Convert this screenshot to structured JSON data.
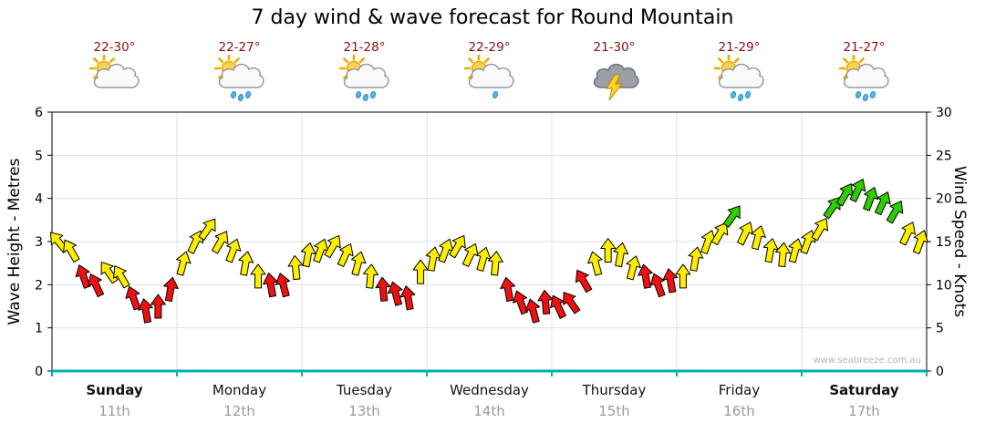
{
  "title": "7 day wind & wave forecast for Round Mountain",
  "watermark": "www.seabreeze.com.au",
  "axes": {
    "left_title": "Wave Height - Metres",
    "right_title": "Wind Speed - Knots",
    "left_ticks": [
      0,
      1,
      2,
      3,
      4,
      5,
      6
    ],
    "right_ticks": [
      0,
      5,
      10,
      15,
      20,
      25,
      30
    ]
  },
  "days": [
    {
      "name": "Sunday",
      "date": "11th",
      "temp": "22-30°",
      "icon": "sun-cloud",
      "drops": 0,
      "weekend": true
    },
    {
      "name": "Monday",
      "date": "12th",
      "temp": "22-27°",
      "icon": "sun-cloud-rain",
      "drops": 3,
      "weekend": false
    },
    {
      "name": "Tuesday",
      "date": "13th",
      "temp": "21-28°",
      "icon": "sun-cloud-rain",
      "drops": 3,
      "weekend": false
    },
    {
      "name": "Wednesday",
      "date": "14th",
      "temp": "22-29°",
      "icon": "sun-cloud-rain",
      "drops": 1,
      "weekend": false
    },
    {
      "name": "Thursday",
      "date": "15th",
      "temp": "21-30°",
      "icon": "storm",
      "drops": 0,
      "weekend": false
    },
    {
      "name": "Friday",
      "date": "16th",
      "temp": "21-29°",
      "icon": "sun-cloud-rain",
      "drops": 3,
      "weekend": false
    },
    {
      "name": "Saturday",
      "date": "17th",
      "temp": "21-27°",
      "icon": "sun-cloud-rain",
      "drops": 3,
      "weekend": true
    }
  ],
  "colors": {
    "wind_light": "#ee1111",
    "wind_moderate": "#ffee00",
    "wind_fresh": "#2ecc00",
    "arrow_outline": "#000000",
    "axis_bottom": "#00b0b0",
    "grid": "#e0e0e0",
    "frame": "#000000",
    "temp_text": "#8b0f0f",
    "date_text": "#9a9a9a"
  },
  "chart_data": {
    "type": "scatter",
    "title": "7 day wind & wave forecast for Round Mountain",
    "x_unit": "days (0-7 across Sunday 11th to Saturday 17th)",
    "y_right_label": "Wind Speed - Knots",
    "y_right_range": [
      0,
      30
    ],
    "y_left_label": "Wave Height - Metres",
    "y_left_range": [
      0,
      6
    ],
    "legend": "arrow color = wind strength: red light, yellow moderate, green fresh; arrow rotation = wind direction",
    "point_format": [
      "day_fraction",
      "knots",
      "direction_deg",
      "color_code"
    ],
    "points": [
      [
        0.05,
        15,
        -40,
        "Y"
      ],
      [
        0.15,
        14,
        -30,
        "Y"
      ],
      [
        0.25,
        11,
        -20,
        "R"
      ],
      [
        0.35,
        10,
        -25,
        "R"
      ],
      [
        0.45,
        11.5,
        -35,
        "Y"
      ],
      [
        0.55,
        11,
        -30,
        "Y"
      ],
      [
        0.65,
        8.5,
        -20,
        "R"
      ],
      [
        0.75,
        7,
        -10,
        "R"
      ],
      [
        0.85,
        7.5,
        0,
        "R"
      ],
      [
        0.95,
        9.5,
        10,
        "R"
      ],
      [
        1.05,
        12.5,
        15,
        "Y"
      ],
      [
        1.15,
        15,
        25,
        "Y"
      ],
      [
        1.25,
        16.5,
        35,
        "Y"
      ],
      [
        1.35,
        15,
        30,
        "Y"
      ],
      [
        1.45,
        14,
        20,
        "Y"
      ],
      [
        1.55,
        12.5,
        10,
        "Y"
      ],
      [
        1.65,
        11,
        0,
        "Y"
      ],
      [
        1.75,
        10,
        -10,
        "R"
      ],
      [
        1.85,
        10,
        -15,
        "R"
      ],
      [
        1.95,
        12,
        -5,
        "Y"
      ],
      [
        2.05,
        13.5,
        10,
        "Y"
      ],
      [
        2.15,
        14,
        20,
        "Y"
      ],
      [
        2.25,
        14.5,
        30,
        "Y"
      ],
      [
        2.35,
        13.5,
        25,
        "Y"
      ],
      [
        2.45,
        12.5,
        15,
        "Y"
      ],
      [
        2.55,
        11,
        5,
        "Y"
      ],
      [
        2.65,
        9.5,
        -5,
        "R"
      ],
      [
        2.75,
        9,
        -15,
        "R"
      ],
      [
        2.85,
        8.5,
        -10,
        "R"
      ],
      [
        2.95,
        11.5,
        0,
        "Y"
      ],
      [
        3.05,
        13,
        10,
        "Y"
      ],
      [
        3.15,
        14,
        20,
        "Y"
      ],
      [
        3.25,
        14.5,
        30,
        "Y"
      ],
      [
        3.35,
        13.5,
        25,
        "Y"
      ],
      [
        3.45,
        13,
        15,
        "Y"
      ],
      [
        3.55,
        12.5,
        5,
        "Y"
      ],
      [
        3.65,
        9.5,
        -10,
        "R"
      ],
      [
        3.75,
        8,
        -20,
        "R"
      ],
      [
        3.85,
        7,
        -15,
        "R"
      ],
      [
        3.95,
        8,
        -5,
        "R"
      ],
      [
        4.05,
        7.5,
        -25,
        "R"
      ],
      [
        4.15,
        8,
        -35,
        "R"
      ],
      [
        4.25,
        10.5,
        -30,
        "R"
      ],
      [
        4.35,
        12.5,
        -15,
        "Y"
      ],
      [
        4.45,
        14,
        0,
        "Y"
      ],
      [
        4.55,
        13.5,
        10,
        "Y"
      ],
      [
        4.65,
        12,
        15,
        "Y"
      ],
      [
        4.75,
        11,
        -10,
        "R"
      ],
      [
        4.85,
        10,
        -20,
        "R"
      ],
      [
        4.95,
        10.5,
        -10,
        "R"
      ],
      [
        5.05,
        11,
        0,
        "Y"
      ],
      [
        5.15,
        13,
        10,
        "Y"
      ],
      [
        5.25,
        15,
        20,
        "Y"
      ],
      [
        5.35,
        16,
        30,
        "Y"
      ],
      [
        5.45,
        18,
        35,
        "G"
      ],
      [
        5.55,
        16,
        25,
        "Y"
      ],
      [
        5.65,
        15.5,
        15,
        "Y"
      ],
      [
        5.75,
        14,
        10,
        "Y"
      ],
      [
        5.85,
        13.5,
        5,
        "Y"
      ],
      [
        5.95,
        14,
        15,
        "Y"
      ],
      [
        6.05,
        15,
        20,
        "Y"
      ],
      [
        6.15,
        16.5,
        30,
        "Y"
      ],
      [
        6.25,
        19,
        35,
        "G"
      ],
      [
        6.35,
        20.5,
        30,
        "G"
      ],
      [
        6.45,
        21,
        25,
        "G"
      ],
      [
        6.55,
        20,
        20,
        "G"
      ],
      [
        6.65,
        19.5,
        25,
        "G"
      ],
      [
        6.75,
        18.5,
        30,
        "G"
      ],
      [
        6.85,
        16,
        25,
        "Y"
      ],
      [
        6.95,
        15,
        20,
        "Y"
      ]
    ]
  }
}
